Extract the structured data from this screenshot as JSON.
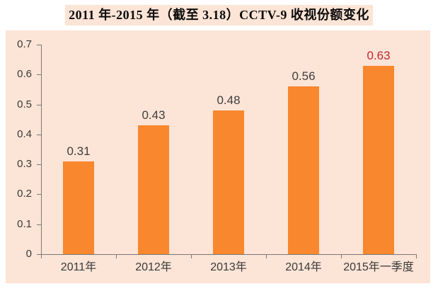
{
  "colors": {
    "page_bg": "#ffffff",
    "plot_bg": "#FCE4D6",
    "bar": "#F8872E",
    "axis": "#7a7a7a",
    "tick_label": "#3a3a3a",
    "value_label": "#3F3F3F",
    "highlight_value_label": "#C3262E",
    "title_bg": "#FCE4D6",
    "title_text": "#0a0a0a"
  },
  "chart_data": {
    "type": "bar",
    "title": "2011 年-2015 年（截至 3.18）CCTV-9 收视份额变化",
    "categories": [
      "2011年",
      "2012年",
      "2013年",
      "2014年",
      "2015年一季度"
    ],
    "values": [
      0.31,
      0.43,
      0.48,
      0.56,
      0.63
    ],
    "data_labels": [
      "0.31",
      "0.43",
      "0.48",
      "0.56",
      "0.63"
    ],
    "highlight_index": 4,
    "xlabel": "",
    "ylabel": "",
    "ylim": [
      0,
      0.7
    ],
    "ytick_step": 0.1,
    "yticks": [
      "0.7",
      "0.6",
      "0.5",
      "0.4",
      "0.3",
      "0.2",
      "0.1",
      "0"
    ],
    "grid": false,
    "legend": "none",
    "series_color": "#F8872E",
    "plot_background": "#FCE4D6"
  }
}
